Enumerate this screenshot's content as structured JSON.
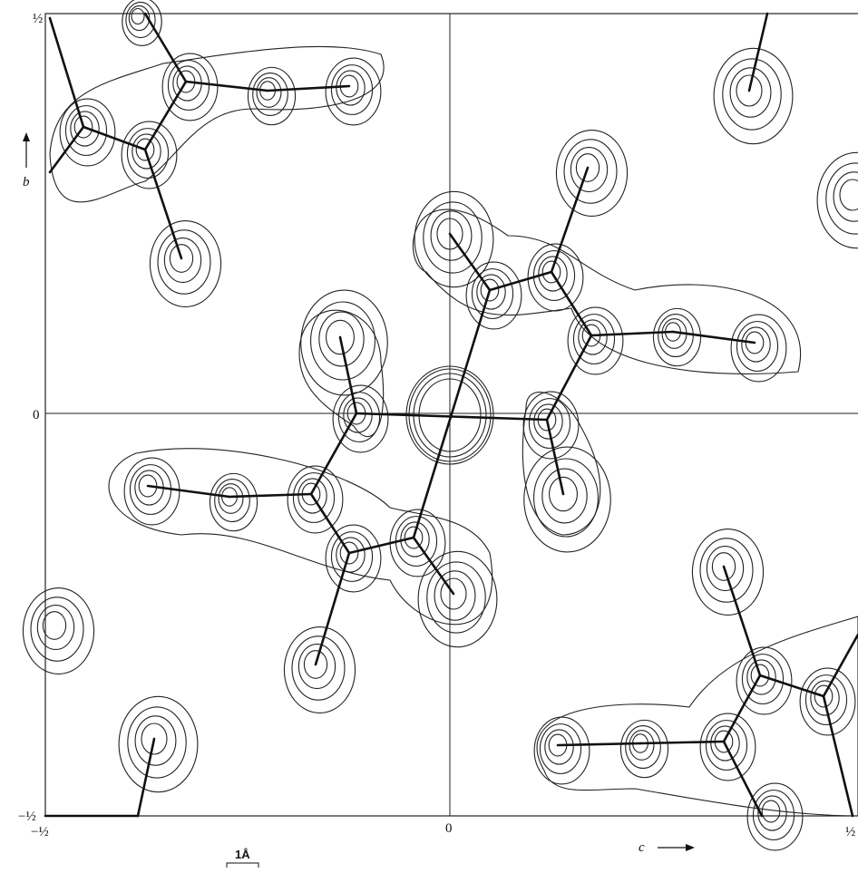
{
  "axes": {
    "b_top": "½",
    "b_zero": "0",
    "b_bottom": "−½",
    "b_label": "b",
    "c_left": "−½",
    "c_zero": "0",
    "c_right": "½",
    "c_label": "c"
  },
  "scale_bar": "1Å"
}
